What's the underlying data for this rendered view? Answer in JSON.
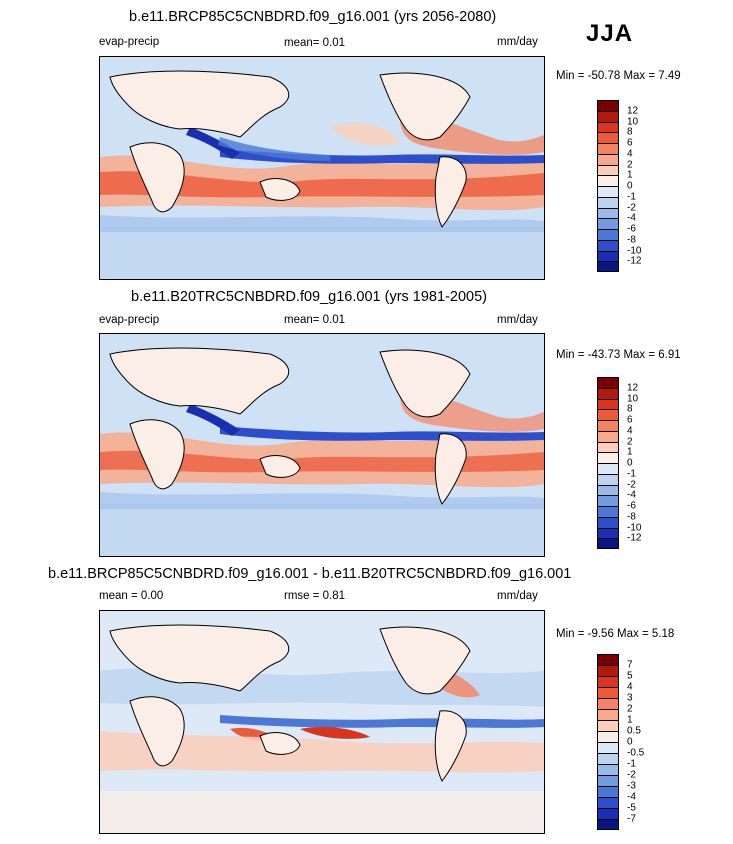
{
  "season": "JJA",
  "panels": [
    {
      "title": "b.e11.BRCP85C5CNBDRD.f09_g16.001 (yrs 2056-2080)",
      "left_label": "evap-precip",
      "center_label": "mean=   0.01",
      "units": "mm/day",
      "minmax": "Min = -50.78 Max =   7.49",
      "colorbar": {
        "labels": [
          "12",
          "10",
          "8",
          "6",
          "4",
          "2",
          "1",
          "0",
          "-1",
          "-2",
          "-4",
          "-6",
          "-8",
          "-10",
          "-12"
        ],
        "colors": [
          "#7a0000",
          "#b01a0c",
          "#d8341e",
          "#ec5a3a",
          "#f6835f",
          "#f9a98a",
          "#fcceb8",
          "#fbeee6",
          "#dde9f7",
          "#bdd4f0",
          "#98baea",
          "#729ce0",
          "#4b78d6",
          "#2d4fcc",
          "#1a2fb0",
          "#0a1585"
        ]
      }
    },
    {
      "title": "b.e11.B20TRC5CNBDRD.f09_g16.001 (yrs 1981-2005)",
      "left_label": "evap-precip",
      "center_label": "mean=   0.01",
      "units": "mm/day",
      "minmax": "Min = -43.73 Max =   6.91",
      "colorbar": {
        "labels": [
          "12",
          "10",
          "8",
          "6",
          "4",
          "2",
          "1",
          "0",
          "-1",
          "-2",
          "-4",
          "-6",
          "-8",
          "-10",
          "-12"
        ],
        "colors": [
          "#7a0000",
          "#b01a0c",
          "#d8341e",
          "#ec5a3a",
          "#f6835f",
          "#f9a98a",
          "#fcceb8",
          "#fbeee6",
          "#dde9f7",
          "#bdd4f0",
          "#98baea",
          "#729ce0",
          "#4b78d6",
          "#2d4fcc",
          "#1a2fb0",
          "#0a1585"
        ]
      }
    },
    {
      "title": "b.e11.BRCP85C5CNBDRD.f09_g16.001 - b.e11.B20TRC5CNBDRD.f09_g16.001",
      "left_label": "mean =   0.00",
      "center_label": "rmse =   0.81",
      "units": "mm/day",
      "minmax": "Min =  -9.56 Max =   5.18",
      "colorbar": {
        "labels": [
          "7",
          "5",
          "4",
          "3",
          "2",
          "1",
          "0.5",
          "0",
          "-0.5",
          "-1",
          "-2",
          "-3",
          "-4",
          "-5",
          "-7"
        ],
        "colors": [
          "#7a0000",
          "#b01a0c",
          "#d8341e",
          "#ec5a3a",
          "#f6835f",
          "#f9a98a",
          "#fcceb8",
          "#fbeee6",
          "#dde9f7",
          "#bdd4f0",
          "#98baea",
          "#729ce0",
          "#4b78d6",
          "#2d4fcc",
          "#1a2fb0",
          "#0a1585"
        ]
      }
    }
  ],
  "chart_data": [
    {
      "type": "heatmap",
      "title": "b.e11.BRCP85C5CNBDRD.f09_g16.001 (yrs 2056-2080)",
      "variable": "evap-precip",
      "units": "mm/day",
      "season": "JJA",
      "mean": 0.01,
      "min": -50.78,
      "max": 7.49,
      "levels": [
        -12,
        -10,
        -8,
        -6,
        -4,
        -2,
        -1,
        0,
        1,
        2,
        4,
        6,
        8,
        10,
        12
      ]
    },
    {
      "type": "heatmap",
      "title": "b.e11.B20TRC5CNBDRD.f09_g16.001 (yrs 1981-2005)",
      "variable": "evap-precip",
      "units": "mm/day",
      "season": "JJA",
      "mean": 0.01,
      "min": -43.73,
      "max": 6.91,
      "levels": [
        -12,
        -10,
        -8,
        -6,
        -4,
        -2,
        -1,
        0,
        1,
        2,
        4,
        6,
        8,
        10,
        12
      ]
    },
    {
      "type": "heatmap",
      "title": "b.e11.BRCP85C5CNBDRD.f09_g16.001 - b.e11.B20TRC5CNBDRD.f09_g16.001",
      "variable": "difference",
      "units": "mm/day",
      "season": "JJA",
      "mean": 0.0,
      "rmse": 0.81,
      "min": -9.56,
      "max": 5.18,
      "levels": [
        -7,
        -5,
        -4,
        -3,
        -2,
        -1,
        -0.5,
        0,
        0.5,
        1,
        2,
        3,
        4,
        5,
        7
      ]
    }
  ]
}
